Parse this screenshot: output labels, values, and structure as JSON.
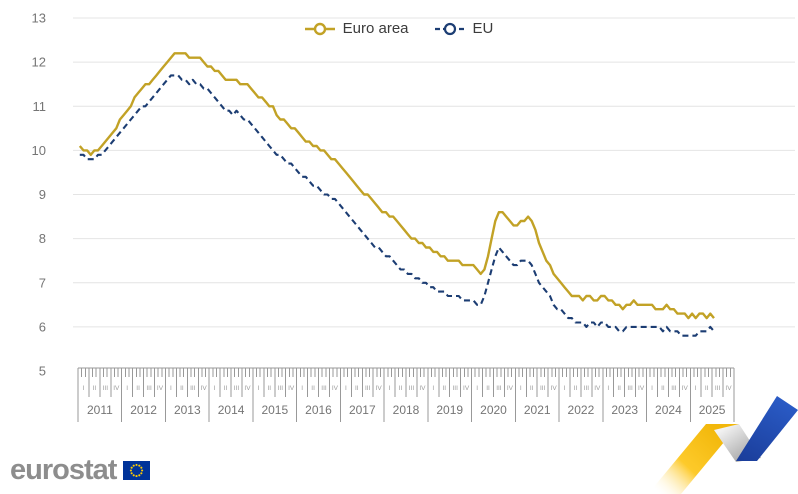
{
  "branding": {
    "logo_text": "eurostat",
    "flag_blue": "#003399",
    "star_yellow": "#FFCC00",
    "ribbon_yellow": "#F9C310",
    "ribbon_gray": "#ABABAB",
    "ribbon_blue": "#2156BE"
  },
  "chart_data": {
    "type": "line",
    "frequency": "monthly",
    "x_range": [
      "2011-01",
      "2025-07"
    ],
    "ylim": [
      5,
      13
    ],
    "y_ticks": [
      5,
      6,
      7,
      8,
      9,
      10,
      11,
      12,
      13
    ],
    "grid": "horizontal",
    "legend_position": "top-center",
    "years": [
      "2011",
      "2012",
      "2013",
      "2014",
      "2015",
      "2016",
      "2017",
      "2018",
      "2019",
      "2020",
      "2021",
      "2022",
      "2023",
      "2024",
      "2025"
    ],
    "quarter_labels": [
      "I",
      "II",
      "III",
      "IV"
    ],
    "axis_colors": {
      "tick_label": "#757575",
      "ruler_line": "#999999",
      "gridline": "#e4e4e4"
    },
    "series": [
      {
        "name": "Euro area",
        "color": "#C2A226",
        "line_style": "solid",
        "values": [
          10.1,
          10.0,
          10.0,
          9.9,
          10.0,
          10.0,
          10.1,
          10.2,
          10.3,
          10.4,
          10.5,
          10.7,
          10.8,
          10.9,
          11.0,
          11.2,
          11.3,
          11.4,
          11.5,
          11.5,
          11.6,
          11.7,
          11.8,
          11.9,
          12.0,
          12.1,
          12.2,
          12.2,
          12.2,
          12.2,
          12.1,
          12.1,
          12.1,
          12.1,
          12.0,
          11.9,
          11.9,
          11.8,
          11.8,
          11.7,
          11.6,
          11.6,
          11.6,
          11.6,
          11.5,
          11.5,
          11.5,
          11.4,
          11.3,
          11.2,
          11.2,
          11.1,
          11.0,
          11.0,
          10.8,
          10.7,
          10.7,
          10.6,
          10.5,
          10.5,
          10.4,
          10.3,
          10.2,
          10.2,
          10.1,
          10.1,
          10.0,
          10.0,
          9.9,
          9.8,
          9.8,
          9.7,
          9.6,
          9.5,
          9.4,
          9.3,
          9.2,
          9.1,
          9.0,
          9.0,
          8.9,
          8.8,
          8.7,
          8.6,
          8.6,
          8.5,
          8.5,
          8.4,
          8.3,
          8.2,
          8.1,
          8.0,
          8.0,
          7.9,
          7.9,
          7.8,
          7.8,
          7.7,
          7.7,
          7.6,
          7.6,
          7.5,
          7.5,
          7.5,
          7.5,
          7.4,
          7.4,
          7.4,
          7.4,
          7.3,
          7.2,
          7.3,
          7.6,
          8.0,
          8.4,
          8.6,
          8.6,
          8.5,
          8.4,
          8.3,
          8.3,
          8.4,
          8.4,
          8.5,
          8.4,
          8.2,
          7.9,
          7.7,
          7.5,
          7.4,
          7.2,
          7.1,
          7.0,
          6.9,
          6.8,
          6.7,
          6.7,
          6.7,
          6.6,
          6.7,
          6.7,
          6.6,
          6.6,
          6.7,
          6.7,
          6.6,
          6.6,
          6.5,
          6.5,
          6.4,
          6.5,
          6.5,
          6.6,
          6.5,
          6.5,
          6.5,
          6.5,
          6.5,
          6.4,
          6.4,
          6.4,
          6.5,
          6.4,
          6.4,
          6.3,
          6.3,
          6.3,
          6.2,
          6.3,
          6.2,
          6.3,
          6.3,
          6.2,
          6.3,
          6.2
        ]
      },
      {
        "name": "EU",
        "color": "#1C3D73",
        "line_style": "dashed",
        "values": [
          9.9,
          9.9,
          9.8,
          9.8,
          9.8,
          9.9,
          9.9,
          10.0,
          10.1,
          10.2,
          10.3,
          10.4,
          10.5,
          10.6,
          10.7,
          10.8,
          10.9,
          11.0,
          11.0,
          11.1,
          11.2,
          11.3,
          11.4,
          11.5,
          11.6,
          11.7,
          11.7,
          11.7,
          11.6,
          11.6,
          11.5,
          11.6,
          11.5,
          11.5,
          11.4,
          11.4,
          11.3,
          11.2,
          11.1,
          11.0,
          10.9,
          10.9,
          10.8,
          10.9,
          10.8,
          10.7,
          10.7,
          10.6,
          10.5,
          10.4,
          10.3,
          10.2,
          10.1,
          10.0,
          9.9,
          9.9,
          9.8,
          9.7,
          9.7,
          9.6,
          9.5,
          9.4,
          9.4,
          9.3,
          9.2,
          9.2,
          9.1,
          9.0,
          9.0,
          8.9,
          8.9,
          8.8,
          8.7,
          8.6,
          8.5,
          8.4,
          8.3,
          8.2,
          8.1,
          8.0,
          7.9,
          7.8,
          7.8,
          7.7,
          7.6,
          7.6,
          7.5,
          7.4,
          7.3,
          7.3,
          7.2,
          7.2,
          7.1,
          7.1,
          7.0,
          7.0,
          6.9,
          6.9,
          6.8,
          6.8,
          6.8,
          6.7,
          6.7,
          6.7,
          6.7,
          6.6,
          6.6,
          6.6,
          6.6,
          6.5,
          6.5,
          6.7,
          7.0,
          7.3,
          7.6,
          7.8,
          7.7,
          7.6,
          7.5,
          7.4,
          7.4,
          7.5,
          7.5,
          7.5,
          7.4,
          7.2,
          7.0,
          6.9,
          6.8,
          6.7,
          6.5,
          6.4,
          6.4,
          6.3,
          6.2,
          6.2,
          6.1,
          6.1,
          6.1,
          6.0,
          6.1,
          6.1,
          6.0,
          6.1,
          6.1,
          6.0,
          6.0,
          6.0,
          5.9,
          5.9,
          6.0,
          6.0,
          6.0,
          6.0,
          6.0,
          6.0,
          6.0,
          6.0,
          6.0,
          6.0,
          5.9,
          6.0,
          5.9,
          5.9,
          5.9,
          5.8,
          5.8,
          5.8,
          5.8,
          5.8,
          5.9,
          5.9,
          5.9,
          6.0,
          5.9
        ]
      }
    ]
  }
}
